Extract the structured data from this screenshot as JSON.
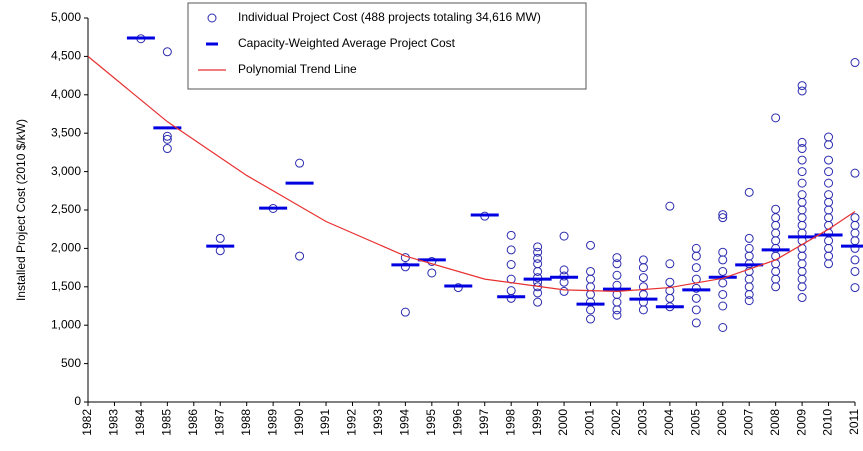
{
  "chart_data": {
    "type": "scatter",
    "ylabel": "Installed Project Cost (2010 $/kW)",
    "xlim": [
      1982,
      2011
    ],
    "xticks": [
      1982,
      1983,
      1984,
      1985,
      1986,
      1987,
      1988,
      1989,
      1990,
      1991,
      1992,
      1993,
      1994,
      1995,
      1996,
      1997,
      1998,
      1999,
      2000,
      2001,
      2002,
      2003,
      2004,
      2005,
      2006,
      2007,
      2008,
      2009,
      2010,
      2011
    ],
    "ylim": [
      0,
      5000
    ],
    "yticks": [
      0,
      500,
      {
        "value": 1000,
        "label": "1,000"
      },
      {
        "value": 1500,
        "label": "1,500"
      },
      {
        "value": 2000,
        "label": "2,000"
      },
      {
        "value": 2500,
        "label": "2,500"
      },
      {
        "value": 3000,
        "label": "3,000"
      },
      {
        "value": 3500,
        "label": "3,500"
      },
      {
        "value": 4000,
        "label": "4,000"
      },
      {
        "value": 4500,
        "label": "4,500"
      },
      {
        "value": 5000,
        "label": "5,000"
      }
    ],
    "grid": false,
    "legend": "top",
    "series": [
      {
        "name": "Individual Project Cost (488 projects totaling 34,616 MW)",
        "color": "#2b2bb0",
        "marker": "circle",
        "x": [
          1984,
          1985,
          1985,
          1985,
          1985,
          1987,
          1987,
          1989,
          1990,
          1990,
          1994,
          1994,
          1994,
          1995,
          1995,
          1996,
          1997,
          1998,
          1998,
          1998,
          1998,
          1998,
          1998,
          1999,
          1999,
          1999,
          1999,
          1999,
          1999,
          1999,
          1999,
          1999,
          1999,
          2000,
          2000,
          2000,
          2000,
          2000,
          2001,
          2001,
          2001,
          2001,
          2001,
          2001,
          2001,
          2001,
          2002,
          2002,
          2002,
          2002,
          2002,
          2002,
          2002,
          2002,
          2003,
          2003,
          2003,
          2003,
          2003,
          2003,
          2003,
          2004,
          2004,
          2004,
          2004,
          2004,
          2004,
          2005,
          2005,
          2005,
          2005,
          2005,
          2005,
          2005,
          2005,
          2006,
          2006,
          2006,
          2006,
          2006,
          2006,
          2006,
          2006,
          2006,
          2007,
          2007,
          2007,
          2007,
          2007,
          2007,
          2007,
          2007,
          2007,
          2007,
          2008,
          2008,
          2008,
          2008,
          2008,
          2008,
          2008,
          2008,
          2008,
          2008,
          2008,
          2008,
          2009,
          2009,
          2009,
          2009,
          2009,
          2009,
          2009,
          2009,
          2009,
          2009,
          2009,
          2009,
          2009,
          2009,
          2009,
          2009,
          2009,
          2009,
          2009,
          2009,
          2009,
          2010,
          2010,
          2010,
          2010,
          2010,
          2010,
          2010,
          2010,
          2010,
          2010,
          2010,
          2010,
          2010,
          2010,
          2010,
          2011,
          2011,
          2011,
          2011,
          2011,
          2011,
          2011,
          2011,
          2011,
          2011
        ],
        "values": [
          4730,
          4560,
          3420,
          3300,
          3460,
          2130,
          1970,
          2520,
          3110,
          1900,
          1880,
          1170,
          1760,
          1830,
          1680,
          1490,
          2420,
          2170,
          1980,
          1790,
          1600,
          1450,
          1350,
          2020,
          1950,
          1870,
          1800,
          1700,
          1620,
          1560,
          1500,
          1420,
          1300,
          2160,
          1720,
          1640,
          1560,
          1440,
          2040,
          1700,
          1600,
          1500,
          1400,
          1300,
          1200,
          1080,
          1880,
          1800,
          1650,
          1520,
          1400,
          1300,
          1200,
          1130,
          1850,
          1750,
          1620,
          1500,
          1400,
          1300,
          1200,
          2550,
          1800,
          1560,
          1450,
          1350,
          1240,
          2000,
          1900,
          1750,
          1600,
          1480,
          1350,
          1200,
          1030,
          2440,
          2400,
          1950,
          1850,
          1700,
          1550,
          1400,
          1250,
          970,
          2730,
          2130,
          2000,
          1900,
          1800,
          1700,
          1600,
          1500,
          1400,
          1320,
          3700,
          2510,
          2400,
          2300,
          2200,
          2100,
          2000,
          1900,
          1800,
          1700,
          1600,
          1500,
          4120,
          4050,
          3380,
          3300,
          3150,
          3000,
          2850,
          2700,
          2600,
          2500,
          2400,
          2300,
          2200,
          2100,
          2000,
          1900,
          1800,
          1700,
          1600,
          1500,
          1360,
          3450,
          3350,
          3150,
          3000,
          2850,
          2700,
          2600,
          2500,
          2400,
          2300,
          2200,
          2100,
          2000,
          1900,
          1800,
          4420,
          2980,
          2400,
          2300,
          2200,
          2100,
          2000,
          1850,
          1700,
          1490
        ]
      },
      {
        "name": "Capacity-Weighted Average Project Cost",
        "color": "#0000e0",
        "marker": "dash",
        "x": [
          1984,
          1985,
          1987,
          1989,
          1990,
          1994,
          1995,
          1996,
          1997,
          1998,
          1999,
          2000,
          2001,
          2002,
          2003,
          2004,
          2005,
          2006,
          2007,
          2008,
          2009,
          2010,
          2011
        ],
        "values": [
          4740,
          3570,
          2030,
          2525,
          2850,
          1785,
          1850,
          1510,
          2435,
          1370,
          1600,
          1625,
          1275,
          1470,
          1340,
          1240,
          1460,
          1625,
          1785,
          1980,
          2150,
          2175,
          2030
        ]
      },
      {
        "name": "Polynomial Trend Line",
        "color": "#e83030",
        "marker": "line",
        "x": [
          1982,
          1985,
          1988,
          1991,
          1994,
          1997,
          2000,
          2002,
          2004,
          2006,
          2008,
          2010,
          2011
        ],
        "values": [
          4500,
          3650,
          2950,
          2350,
          1900,
          1600,
          1460,
          1440,
          1490,
          1610,
          1850,
          2250,
          2480
        ]
      }
    ]
  }
}
